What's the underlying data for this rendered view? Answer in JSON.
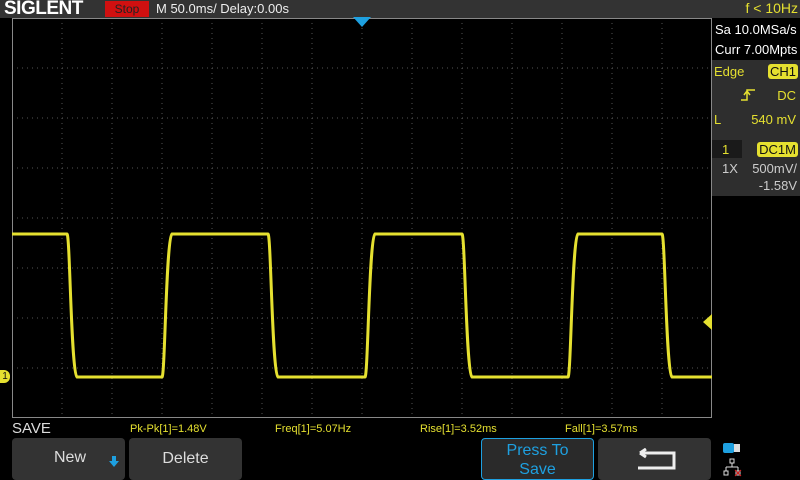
{
  "header": {
    "brand": "SIGLENT",
    "run_state": "Stop",
    "timebase": "M 50.0ms/ Delay:0.00s",
    "freq_counter": "f < 10Hz"
  },
  "acq": {
    "sample_rate": "Sa 10.0MSa/s",
    "memory": "Curr 7.00Mpts"
  },
  "trigger": {
    "type": "Edge",
    "source": "CH1",
    "slope_icon": "rising-edge-icon",
    "coupling": "DC",
    "level_label": "L",
    "level": "540 mV"
  },
  "channel": {
    "number": "1",
    "coupling": "DC1M",
    "probe": "1X",
    "scale": "500mV/",
    "offset": "-1.58V"
  },
  "colors": {
    "ch1": "#e5e030",
    "accent": "#1ea0e0",
    "stop": "#d01010"
  },
  "menu": {
    "title": "SAVE",
    "buttons": {
      "new": "New",
      "delete": "Delete",
      "press_to_save_1": "Press To",
      "press_to_save_2": "Save"
    }
  },
  "measurements": [
    "Pk-Pk[1]=1.48V",
    "Freq[1]=5.07Hz",
    "Rise[1]=3.52ms",
    "Fall[1]=3.57ms"
  ],
  "channel_marker": "1"
}
